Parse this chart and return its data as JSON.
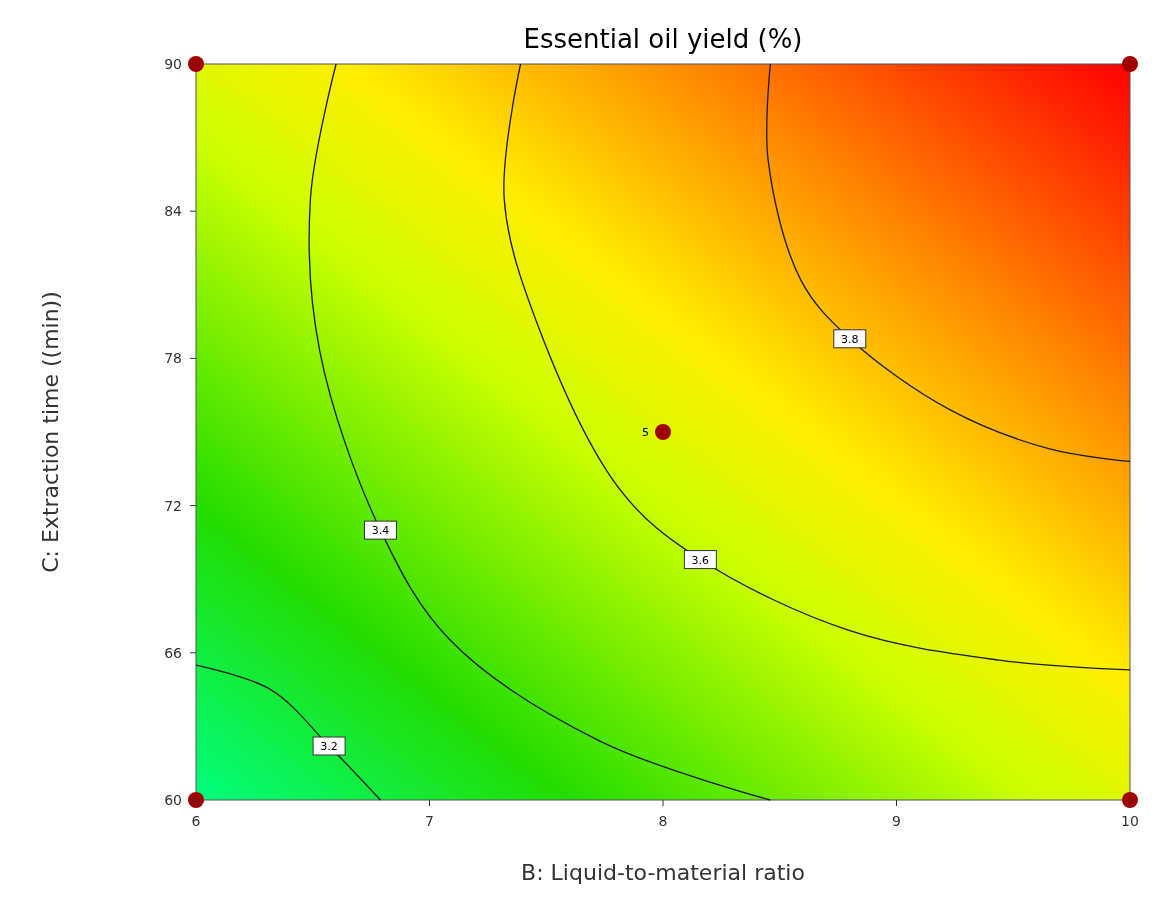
{
  "chart_data": {
    "type": "line",
    "title": "Essential oil yield (%)",
    "xlabel": "B: Liquid-to-material ratio",
    "ylabel": "C: Extraction time ((min))",
    "xlim": [
      6,
      10
    ],
    "ylim": [
      60,
      90
    ],
    "xticks": [
      6,
      7,
      8,
      9,
      10
    ],
    "yticks": [
      60,
      66,
      72,
      78,
      84,
      90
    ],
    "legend": false,
    "series": [
      {
        "name": "3.2",
        "color": "#1a1a1a",
        "x": [
          6,
          6.32,
          6.57,
          6.79
        ],
        "values": [
          65.5,
          64.5,
          62.2,
          60
        ]
      },
      {
        "name": "3.4",
        "color": "#1a1a1a",
        "x": [
          6.6,
          6.49,
          6.53,
          6.79,
          7.09,
          7.73,
          8.46
        ],
        "values": [
          90,
          84.5,
          78.3,
          71,
          66.5,
          62.4,
          60
        ]
      },
      {
        "name": "3.6",
        "color": "#1a1a1a",
        "x": [
          7.39,
          7.32,
          7.47,
          7.82,
          8.16,
          8.8,
          9.44,
          10
        ],
        "values": [
          90,
          84.5,
          79.2,
          72.6,
          69.8,
          66.9,
          65.7,
          65.3
        ]
      },
      {
        "name": "3.8",
        "color": "#1a1a1a",
        "x": [
          8.46,
          8.45,
          8.59,
          8.8,
          9.23,
          9.66,
          10
        ],
        "values": [
          90,
          86.1,
          81.2,
          78.8,
          75.9,
          74.3,
          73.8
        ]
      },
      {
        "type": "scatter",
        "marker": "circle",
        "color": "#a00000",
        "x": [
          6,
          6,
          10,
          10,
          8
        ],
        "values": [
          60,
          90,
          60,
          90,
          75
        ]
      }
    ],
    "annotations": [
      {
        "text": "5",
        "x": 8,
        "y": 75
      }
    ]
  }
}
